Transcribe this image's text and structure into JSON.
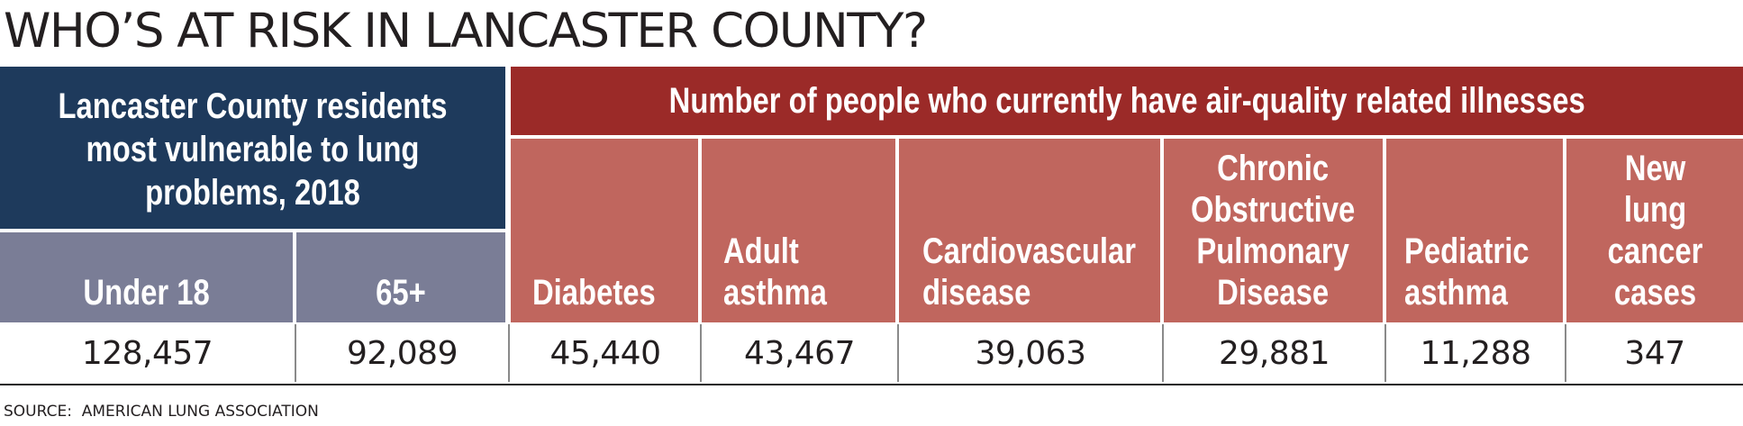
{
  "title": "WHO’S AT RISK IN LANCASTER COUNTY?",
  "left_group": {
    "header": "Lancaster County residents most vulnerable to lung problems, 2018",
    "columns": [
      {
        "label": "Under 18",
        "value": "128,457"
      },
      {
        "label": "65+",
        "value": "92,089"
      }
    ]
  },
  "right_group": {
    "header": "Number of people who currently have air-quality related illnesses",
    "columns": [
      {
        "label": "Diabetes",
        "value": "45,440"
      },
      {
        "label": "Adult\nasthma",
        "value": "43,467"
      },
      {
        "label": "Cardiovascular\ndisease",
        "value": "39,063"
      },
      {
        "label": "Chronic\nObstructive\nPulmonary\nDisease",
        "value": "29,881"
      },
      {
        "label": "Pediatric\nasthma",
        "value": "11,288"
      },
      {
        "label": "New\nlung\ncancer\ncases",
        "value": "347"
      }
    ]
  },
  "source": "SOURCE:  AMERICAN LUNG ASSOCIATION",
  "colors": {
    "navy": "#1e3a5c",
    "slate": "#7a7d96",
    "dark_red": "#9b2a28",
    "light_red": "#c0665e"
  }
}
